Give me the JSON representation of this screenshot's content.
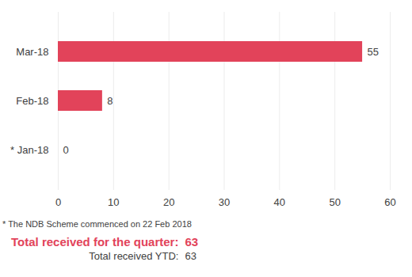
{
  "chart_data": {
    "type": "bar",
    "orientation": "horizontal",
    "categories": [
      "Mar-18",
      "Feb-18",
      "* Jan-18"
    ],
    "values": [
      55,
      8,
      0
    ],
    "color": "#e2435a",
    "xlim": [
      0,
      60
    ],
    "xticks": [
      0,
      10,
      20,
      30,
      40,
      50,
      60
    ],
    "grid": true,
    "data_labels": true,
    "annotations": [
      "* The NDB Scheme commenced on 22 Feb 2018"
    ],
    "totals": [
      {
        "label": "Total received for the quarter:",
        "value": 63
      },
      {
        "label": "Total received YTD:",
        "value": 63
      }
    ]
  }
}
